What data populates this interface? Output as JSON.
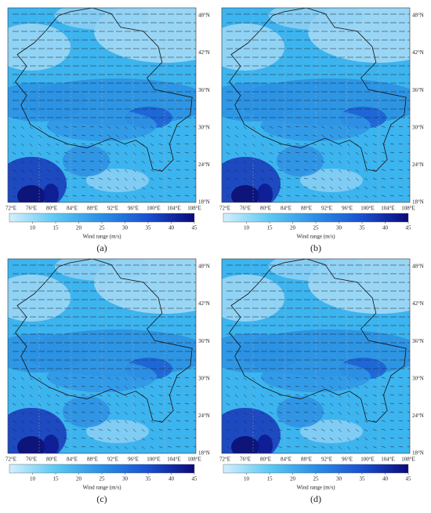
{
  "panels": [
    {
      "label": "(a)"
    },
    {
      "label": "(b)"
    },
    {
      "label": "(c)"
    },
    {
      "label": "(d)"
    }
  ],
  "lon_ticks": [
    "72°E",
    "76°E",
    "80°E",
    "84°E",
    "88°E",
    "92°E",
    "96°E",
    "100°E",
    "104°E",
    "108°E"
  ],
  "lat_ticks": [
    "18°N",
    "24°N",
    "30°N",
    "36°N",
    "42°N",
    "48°N"
  ],
  "colorbar": {
    "title": "Wind range (m/s)",
    "range": [
      5,
      45
    ],
    "ticks": [
      10,
      15,
      20,
      25,
      30,
      35,
      40,
      45
    ]
  }
}
